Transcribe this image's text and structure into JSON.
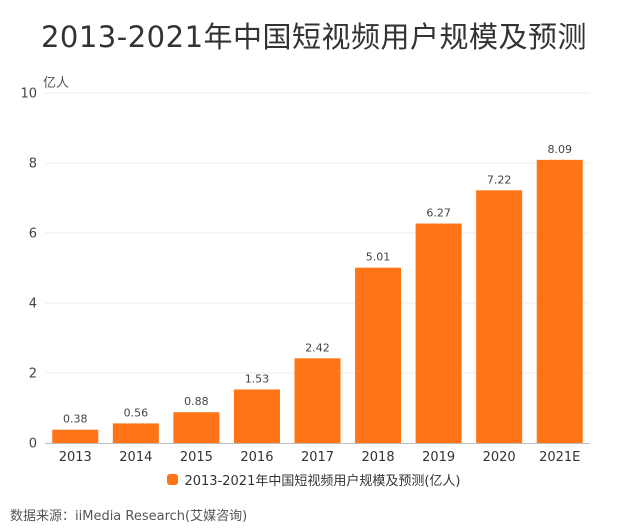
{
  "chart_data": {
    "type": "bar",
    "title": "2013-2021年中国短视频用户规模及预测",
    "ylabel": "亿人",
    "categories": [
      "2013",
      "2014",
      "2015",
      "2016",
      "2017",
      "2018",
      "2019",
      "2020",
      "2021E"
    ],
    "series": [
      {
        "name": "2013-2021年中国短视频用户规模及预测(亿人)",
        "values": [
          0.38,
          0.56,
          0.88,
          1.53,
          2.42,
          5.01,
          6.27,
          7.22,
          8.09
        ],
        "color": "#ff7417"
      }
    ],
    "ylim": [
      0,
      10
    ],
    "yticks": [
      0,
      2,
      4,
      6,
      8,
      10
    ],
    "grid": true,
    "legend_position": "bottom"
  },
  "source": "数据来源：iiMedia Research(艾媒咨询)"
}
